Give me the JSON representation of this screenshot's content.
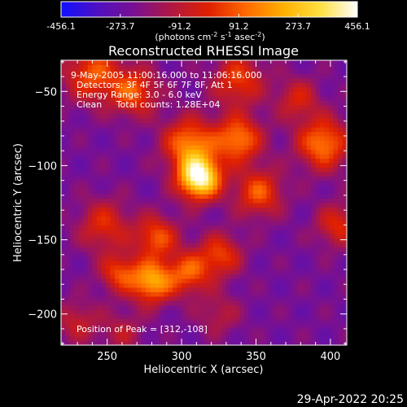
{
  "figure": {
    "title": "Reconstructed RHESSI Image",
    "timestamp": "29-Apr-2022 20:25"
  },
  "colorbar": {
    "ticks": [
      "-456.1",
      "-273.7",
      "-91.2",
      "91.2",
      "273.7",
      "456.1"
    ],
    "range": [
      -456.1,
      456.1
    ],
    "units_main": "(photons cm",
    "units_sup1": "-2",
    "units_mid1": " s",
    "units_sup2": "-1",
    "units_mid2": " asec",
    "units_sup3": "-2",
    "units_end": ")",
    "colors": [
      "#1010ff",
      "#5010c0",
      "#7a1090",
      "#b01840",
      "#e02000",
      "#ff6a00",
      "#ffb000",
      "#ffe040",
      "#ffffff"
    ]
  },
  "info": {
    "line1": "9-May-2005 11:00:16.000 to 11:06:16.000",
    "line2": "Detectors: 3F 4F 5F 6F 7F 8F, Att 1",
    "line3": "Energy Range: 3.0 - 6.0 keV",
    "line4": "Clean     Total counts: 1.28E+04",
    "peak": "Position of Peak = [312,-108]"
  },
  "chart_data": {
    "type": "heatmap",
    "title": "Reconstructed RHESSI Image",
    "xlabel": "Heliocentric X (arcsec)",
    "ylabel": "Heliocentric Y (arcsec)",
    "xlim": [
      219,
      411
    ],
    "ylim": [
      -221,
      -29
    ],
    "xticks": [
      250,
      300,
      350,
      400
    ],
    "yticks": [
      -50,
      -100,
      -150,
      -200
    ],
    "peak": {
      "x": 312,
      "y": -108
    },
    "sources": [
      {
        "x": 312,
        "y": -108,
        "amp": 1.0,
        "sigma": 10
      },
      {
        "x": 305,
        "y": -85,
        "amp": 0.55,
        "sigma": 12
      },
      {
        "x": 338,
        "y": -82,
        "amp": 0.55,
        "sigma": 11
      },
      {
        "x": 352,
        "y": -118,
        "amp": 0.45,
        "sigma": 11
      },
      {
        "x": 395,
        "y": -85,
        "amp": 0.55,
        "sigma": 12
      },
      {
        "x": 240,
        "y": -38,
        "amp": 0.45,
        "sigma": 13
      },
      {
        "x": 268,
        "y": -50,
        "amp": 0.45,
        "sigma": 11
      },
      {
        "x": 338,
        "y": -42,
        "amp": 0.4,
        "sigma": 12
      },
      {
        "x": 248,
        "y": -140,
        "amp": 0.35,
        "sigma": 12
      },
      {
        "x": 283,
        "y": -148,
        "amp": 0.45,
        "sigma": 10
      },
      {
        "x": 280,
        "y": -178,
        "amp": 0.65,
        "sigma": 10
      },
      {
        "x": 258,
        "y": -172,
        "amp": 0.4,
        "sigma": 9
      },
      {
        "x": 305,
        "y": -172,
        "amp": 0.45,
        "sigma": 10
      },
      {
        "x": 326,
        "y": -160,
        "amp": 0.4,
        "sigma": 10
      },
      {
        "x": 405,
        "y": -140,
        "amp": 0.35,
        "sigma": 10
      },
      {
        "x": 378,
        "y": -55,
        "amp": 0.3,
        "sigma": 10
      },
      {
        "x": 325,
        "y": -200,
        "amp": 0.2,
        "sigma": 10
      },
      {
        "x": 230,
        "y": -205,
        "amp": 0.25,
        "sigma": 10
      },
      {
        "x": 260,
        "y": -212,
        "amp": 0.2,
        "sigma": 10
      }
    ]
  }
}
